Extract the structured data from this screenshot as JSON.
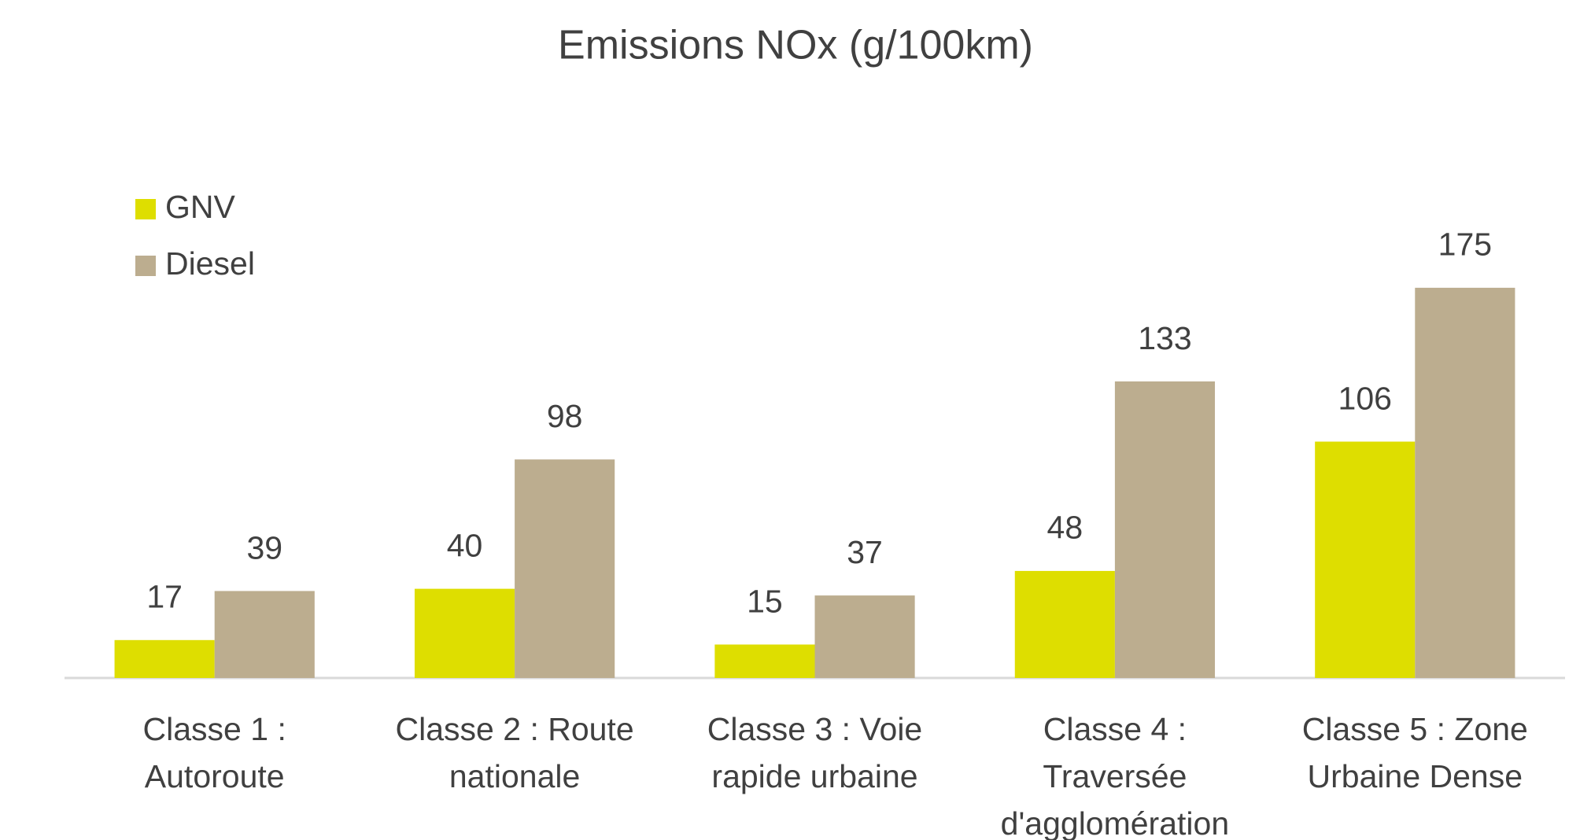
{
  "chart_data": {
    "type": "bar",
    "title": "Emissions NOx (g/100km)",
    "categories": [
      "Classe 1 : Autoroute",
      "Classe 2 : Route nationale",
      "Classe 3 : Voie rapide urbaine",
      "Classe 4 : Traversée d'agglomération",
      "Classe 5 : Zone Urbaine Dense"
    ],
    "series": [
      {
        "name": "GNV",
        "color": "#dede00",
        "values": [
          17,
          40,
          15,
          48,
          106
        ]
      },
      {
        "name": "Diesel",
        "color": "#bcad8f",
        "values": [
          39,
          98,
          37,
          133,
          175
        ]
      }
    ],
    "ylim": [
      0,
      200
    ],
    "legend": "top-left"
  }
}
